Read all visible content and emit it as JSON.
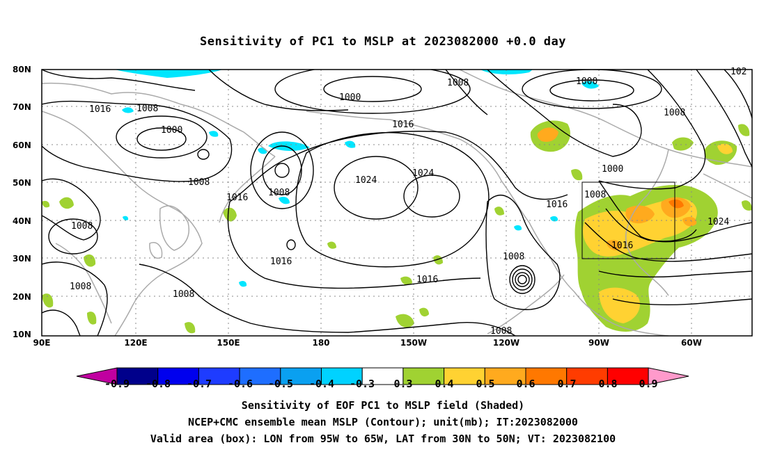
{
  "title": "Sensitivity of PC1 to MSLP at 2023082000 +0.0 day",
  "axes": {
    "lat_labels": [
      "80N",
      "70N",
      "60N",
      "50N",
      "40N",
      "30N",
      "20N",
      "10N"
    ],
    "lon_labels": [
      "90E",
      "120E",
      "150E",
      "180",
      "150W",
      "120W",
      "90W",
      "60W"
    ]
  },
  "contour_labels": [
    {
      "text": "1016"
    },
    {
      "text": "1008"
    },
    {
      "text": "1000"
    },
    {
      "text": "1008"
    },
    {
      "text": "1016"
    },
    {
      "text": "1008"
    },
    {
      "text": "1008"
    },
    {
      "text": "1008"
    },
    {
      "text": "1000"
    },
    {
      "text": "1016"
    },
    {
      "text": "1024"
    },
    {
      "text": "1024"
    },
    {
      "text": "1016"
    },
    {
      "text": "1016"
    },
    {
      "text": "1008"
    },
    {
      "text": "1000"
    },
    {
      "text": "1008"
    },
    {
      "text": "1000"
    },
    {
      "text": "1008"
    },
    {
      "text": "1016"
    },
    {
      "text": "1016"
    },
    {
      "text": "1024"
    },
    {
      "text": "1008"
    },
    {
      "text": "1008"
    },
    {
      "text": "102"
    }
  ],
  "colorbar": {
    "labels": [
      "-0.9",
      "-0.8",
      "-0.7",
      "-0.6",
      "-0.5",
      "-0.4",
      "-0.3",
      "0.3",
      "0.4",
      "0.5",
      "0.6",
      "0.7",
      "0.8",
      "0.9"
    ],
    "colors": [
      "#00008b",
      "#0000ee",
      "#1e3cff",
      "#1e6eff",
      "#0aa0f0",
      "#00d2ff",
      "#ffffff",
      "#a0d232",
      "#ffd232",
      "#ffaa1e",
      "#ff7800",
      "#ff3c00",
      "#ff0000"
    ],
    "under_color": "#c000a0",
    "over_color": "#ff9acb"
  },
  "captions": {
    "line1": "Sensitivity of EOF PC1 to MSLP field (Shaded)",
    "line2": "NCEP+CMC ensemble mean MSLP (Contour); unit(mb); IT:2023082000",
    "line3": "Valid area (box): LON from 95W to 65W, LAT from 30N to 50N; VT: 2023082100"
  }
}
